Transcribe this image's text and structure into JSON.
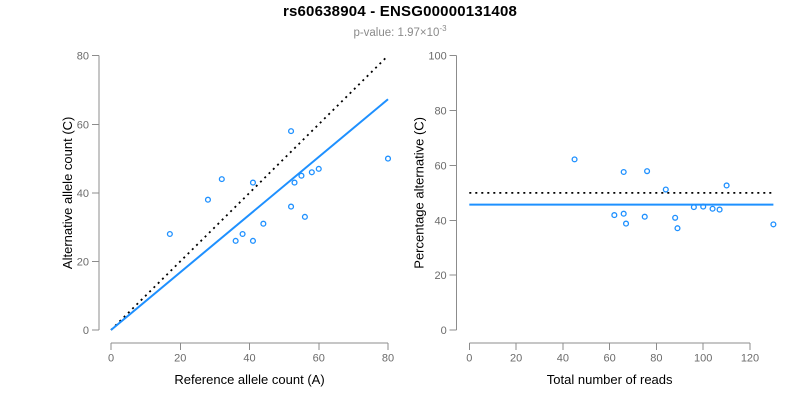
{
  "header": {
    "title": "rs60638904 - ENSG00000131408",
    "p_value_label": "p-value: ",
    "p_value_base": "1.97×10",
    "p_value_exponent": "-3"
  },
  "colors": {
    "accent_blue": "#1E90FF",
    "reference_black": "#000000",
    "axis_gray": "#8c8c8c",
    "tick_label_gray": "#6b6b6b",
    "subtitle_gray": "#8a8a8a",
    "background": "#ffffff"
  },
  "chart_data": [
    {
      "name": "allele-count-scatter",
      "type": "scatter",
      "title": "",
      "xlabel": "Reference allele count (A)",
      "ylabel": "Alternative allele count (C)",
      "xlim": [
        0,
        80
      ],
      "ylim": [
        0,
        80
      ],
      "xticks": [
        0,
        20,
        40,
        60,
        80
      ],
      "yticks": [
        0,
        20,
        40,
        60,
        80
      ],
      "grid": false,
      "legend_position": "none",
      "marker": "open-circle",
      "points": [
        [
          17,
          28
        ],
        [
          28,
          38
        ],
        [
          32,
          44
        ],
        [
          36,
          26
        ],
        [
          38,
          28
        ],
        [
          41,
          26
        ],
        [
          41,
          43
        ],
        [
          44,
          31
        ],
        [
          52,
          36
        ],
        [
          52,
          58
        ],
        [
          53,
          43
        ],
        [
          55,
          45
        ],
        [
          56,
          33
        ],
        [
          58,
          46
        ],
        [
          60,
          47
        ],
        [
          80,
          50
        ]
      ],
      "lines": [
        {
          "name": "identity-line",
          "style": "dotted",
          "color": "#000000",
          "x1": 0,
          "y1": 0,
          "x2": 80,
          "y2": 80
        },
        {
          "name": "fit-line",
          "style": "solid",
          "color": "#1E90FF",
          "x1": 0,
          "y1": 0,
          "x2": 80,
          "y2": 67.3
        }
      ]
    },
    {
      "name": "percentage-vs-reads-scatter",
      "type": "scatter",
      "title": "",
      "xlabel": "Total number of reads",
      "ylabel": "Percentage alternative (C)",
      "xlim": [
        0,
        130
      ],
      "ylim": [
        0,
        100
      ],
      "xticks": [
        0,
        20,
        40,
        60,
        80,
        100,
        120
      ],
      "yticks": [
        0,
        20,
        40,
        60,
        80,
        100
      ],
      "grid": false,
      "legend_position": "none",
      "marker": "open-circle",
      "points": [
        [
          45,
          62.2
        ],
        [
          62,
          41.9
        ],
        [
          66,
          42.4
        ],
        [
          66,
          57.6
        ],
        [
          67,
          38.8
        ],
        [
          75,
          41.3
        ],
        [
          76,
          57.9
        ],
        [
          84,
          51.2
        ],
        [
          88,
          40.9
        ],
        [
          89,
          37.1
        ],
        [
          96,
          44.8
        ],
        [
          100,
          45.0
        ],
        [
          104,
          44.2
        ],
        [
          107,
          43.9
        ],
        [
          110,
          52.7
        ],
        [
          130,
          38.5
        ]
      ],
      "lines": [
        {
          "name": "expected-percentage-line",
          "style": "dotted",
          "color": "#000000",
          "x1": 0,
          "y1": 50,
          "x2": 130,
          "y2": 50
        },
        {
          "name": "observed-percentage-line",
          "style": "solid",
          "color": "#1E90FF",
          "x1": 0,
          "y1": 45.7,
          "x2": 130,
          "y2": 45.7
        }
      ]
    }
  ]
}
